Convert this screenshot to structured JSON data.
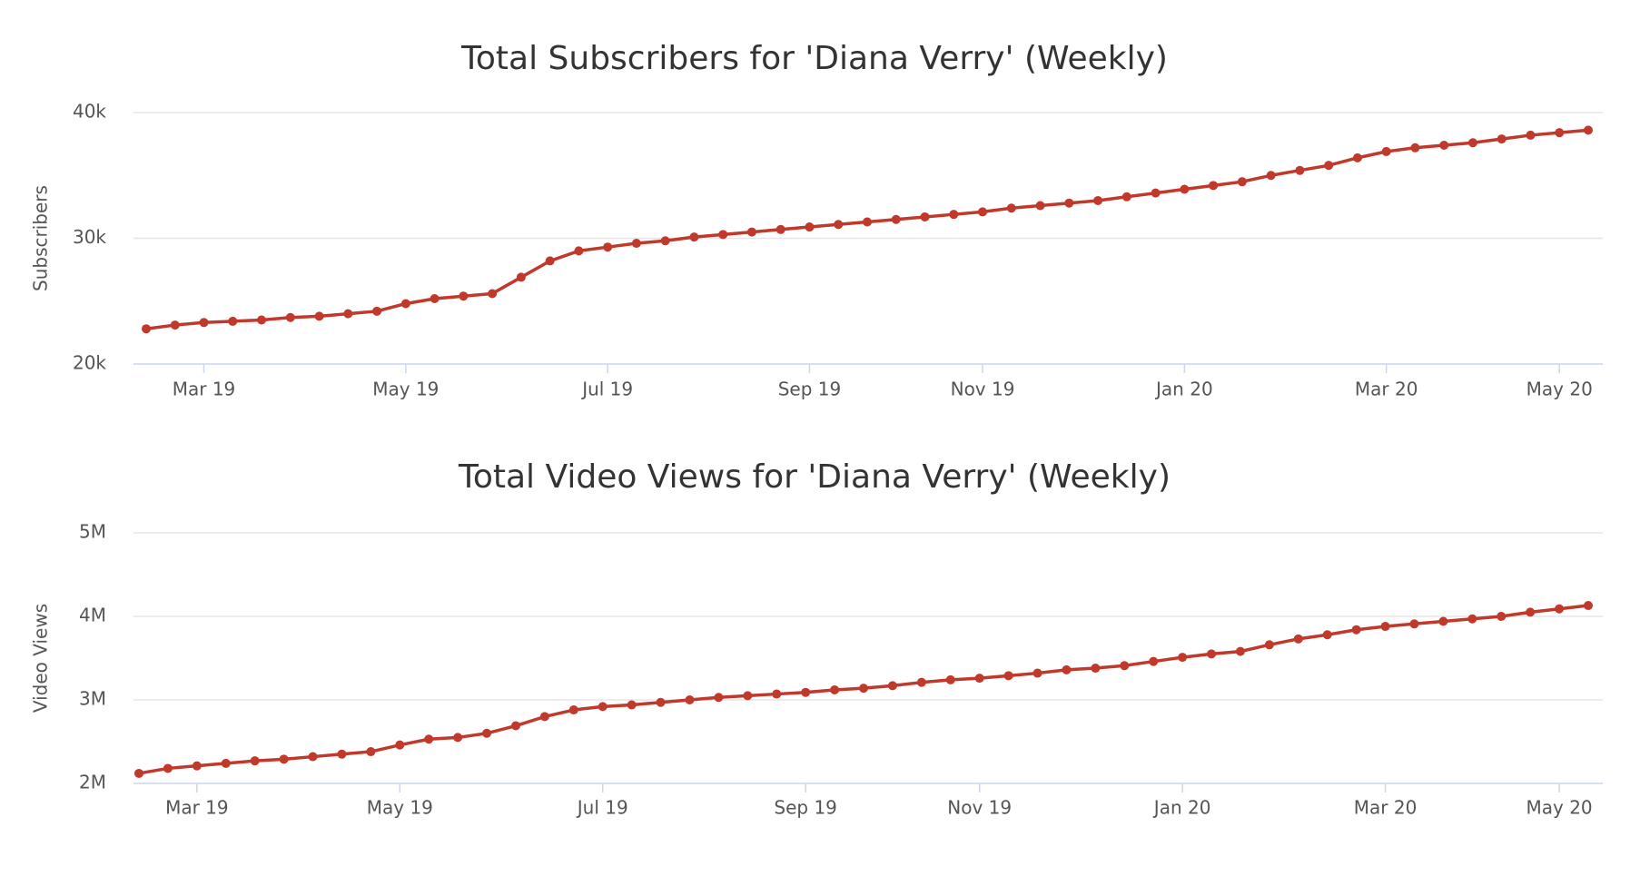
{
  "chart_data": [
    {
      "type": "line",
      "title": "Total Subscribers for 'Diana Verry' (Weekly)",
      "ylabel": "Subscribers",
      "color": "#c0392b",
      "categories": [
        null,
        null,
        "Mar 19",
        null,
        null,
        null,
        null,
        null,
        null,
        "May 19",
        null,
        null,
        null,
        null,
        null,
        null,
        "Jul 19",
        null,
        null,
        null,
        null,
        null,
        null,
        "Sep 19",
        null,
        null,
        null,
        null,
        null,
        "Nov 19",
        null,
        null,
        null,
        null,
        null,
        null,
        "Jan 20",
        null,
        null,
        null,
        null,
        null,
        null,
        "Mar 20",
        null,
        null,
        null,
        null,
        null,
        "May 20",
        null
      ],
      "values": [
        22800,
        23100,
        23300,
        23400,
        23500,
        23700,
        23800,
        24000,
        24200,
        24800,
        25200,
        25400,
        25600,
        26900,
        28200,
        29000,
        29300,
        29600,
        29800,
        30100,
        30300,
        30500,
        30700,
        30900,
        31100,
        31300,
        31500,
        31700,
        31900,
        32100,
        32400,
        32600,
        32800,
        33000,
        33300,
        33600,
        33900,
        34200,
        34500,
        35000,
        35400,
        35800,
        36400,
        36900,
        37200,
        37400,
        37600,
        37900,
        38200,
        38400,
        38600
      ],
      "ylim": [
        20000,
        40000
      ],
      "yticks": [
        {
          "value": 20000,
          "label": "20k"
        },
        {
          "value": 30000,
          "label": "30k"
        },
        {
          "value": 40000,
          "label": "40k"
        }
      ],
      "grid": true
    },
    {
      "type": "line",
      "title": "Total Video Views for 'Diana Verry' (Weekly)",
      "ylabel": "Video Views",
      "color": "#c0392b",
      "categories": [
        null,
        null,
        "Mar 19",
        null,
        null,
        null,
        null,
        null,
        null,
        "May 19",
        null,
        null,
        null,
        null,
        null,
        null,
        "Jul 19",
        null,
        null,
        null,
        null,
        null,
        null,
        "Sep 19",
        null,
        null,
        null,
        null,
        null,
        "Nov 19",
        null,
        null,
        null,
        null,
        null,
        null,
        "Jan 20",
        null,
        null,
        null,
        null,
        null,
        null,
        "Mar 20",
        null,
        null,
        null,
        null,
        null,
        "May 20",
        null
      ],
      "values": [
        2120000,
        2180000,
        2210000,
        2240000,
        2270000,
        2290000,
        2320000,
        2350000,
        2380000,
        2460000,
        2530000,
        2550000,
        2600000,
        2690000,
        2800000,
        2880000,
        2920000,
        2940000,
        2970000,
        3000000,
        3030000,
        3050000,
        3070000,
        3090000,
        3120000,
        3140000,
        3170000,
        3210000,
        3240000,
        3260000,
        3290000,
        3320000,
        3360000,
        3380000,
        3410000,
        3460000,
        3510000,
        3550000,
        3580000,
        3660000,
        3730000,
        3780000,
        3840000,
        3880000,
        3910000,
        3940000,
        3970000,
        4000000,
        4050000,
        4090000,
        4130000
      ],
      "ylim": [
        2000000,
        5000000
      ],
      "yticks": [
        {
          "value": 2000000,
          "label": "2M"
        },
        {
          "value": 3000000,
          "label": "3M"
        },
        {
          "value": 4000000,
          "label": "4M"
        },
        {
          "value": 5000000,
          "label": "5M"
        }
      ],
      "grid": true
    }
  ]
}
